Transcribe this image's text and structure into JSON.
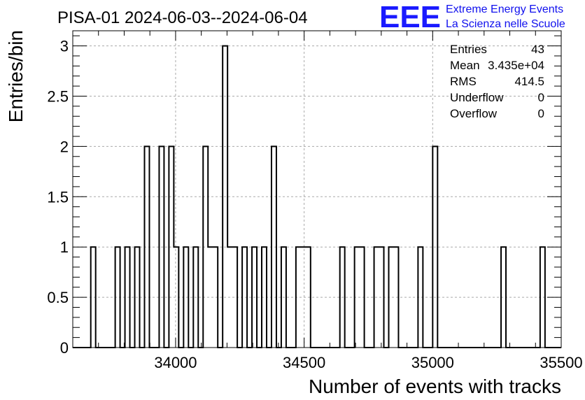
{
  "header": {
    "title": "PISA-01 2024-06-03--2024-06-04",
    "logo_mark": "EEE",
    "logo_line1": "Extreme Energy Events",
    "logo_line2": "La Scienza nelle Scuole"
  },
  "stats": {
    "entries_label": "Entries",
    "entries_value": "43",
    "mean_label": "Mean",
    "mean_value": "3.435e+04",
    "rms_label": "RMS",
    "rms_value": "414.5",
    "underflow_label": "Underflow",
    "underflow_value": "0",
    "overflow_label": "Overflow",
    "overflow_value": "0"
  },
  "colors": {
    "line": "#000000",
    "grid": "#aaaaaa",
    "logo": "#1a1aff"
  },
  "chart_data": {
    "type": "bar",
    "style": "step-histogram",
    "xlabel": "Number of events with tracks",
    "ylabel": "Entries/bin",
    "xlim": [
      33600,
      35500
    ],
    "ylim": [
      0,
      3.15
    ],
    "grid": true,
    "x_ticks": [
      34000,
      34500,
      35000,
      35500
    ],
    "y_ticks": [
      0,
      0.5,
      1,
      1.5,
      2,
      2.5,
      3
    ],
    "bin_width": 19,
    "bins": [
      {
        "x": 33670,
        "value": 1
      },
      {
        "x": 33765,
        "value": 1
      },
      {
        "x": 33803,
        "value": 1
      },
      {
        "x": 33841,
        "value": 1
      },
      {
        "x": 33879,
        "value": 2
      },
      {
        "x": 33936,
        "value": 2
      },
      {
        "x": 33974,
        "value": 2
      },
      {
        "x": 33993,
        "value": 1
      },
      {
        "x": 34031,
        "value": 1
      },
      {
        "x": 34069,
        "value": 1
      },
      {
        "x": 34107,
        "value": 2
      },
      {
        "x": 34126,
        "value": 1
      },
      {
        "x": 34145,
        "value": 1
      },
      {
        "x": 34183,
        "value": 3
      },
      {
        "x": 34202,
        "value": 1
      },
      {
        "x": 34221,
        "value": 1
      },
      {
        "x": 34259,
        "value": 1
      },
      {
        "x": 34297,
        "value": 1
      },
      {
        "x": 34335,
        "value": 1
      },
      {
        "x": 34373,
        "value": 2
      },
      {
        "x": 34411,
        "value": 1
      },
      {
        "x": 34468,
        "value": 1
      },
      {
        "x": 34487,
        "value": 1
      },
      {
        "x": 34506,
        "value": 1
      },
      {
        "x": 34639,
        "value": 1
      },
      {
        "x": 34696,
        "value": 1
      },
      {
        "x": 34715,
        "value": 1
      },
      {
        "x": 34772,
        "value": 1
      },
      {
        "x": 34791,
        "value": 1
      },
      {
        "x": 34829,
        "value": 1
      },
      {
        "x": 34848,
        "value": 1
      },
      {
        "x": 34943,
        "value": 1
      },
      {
        "x": 35000,
        "value": 2
      },
      {
        "x": 35266,
        "value": 1
      },
      {
        "x": 35418,
        "value": 1
      }
    ]
  }
}
